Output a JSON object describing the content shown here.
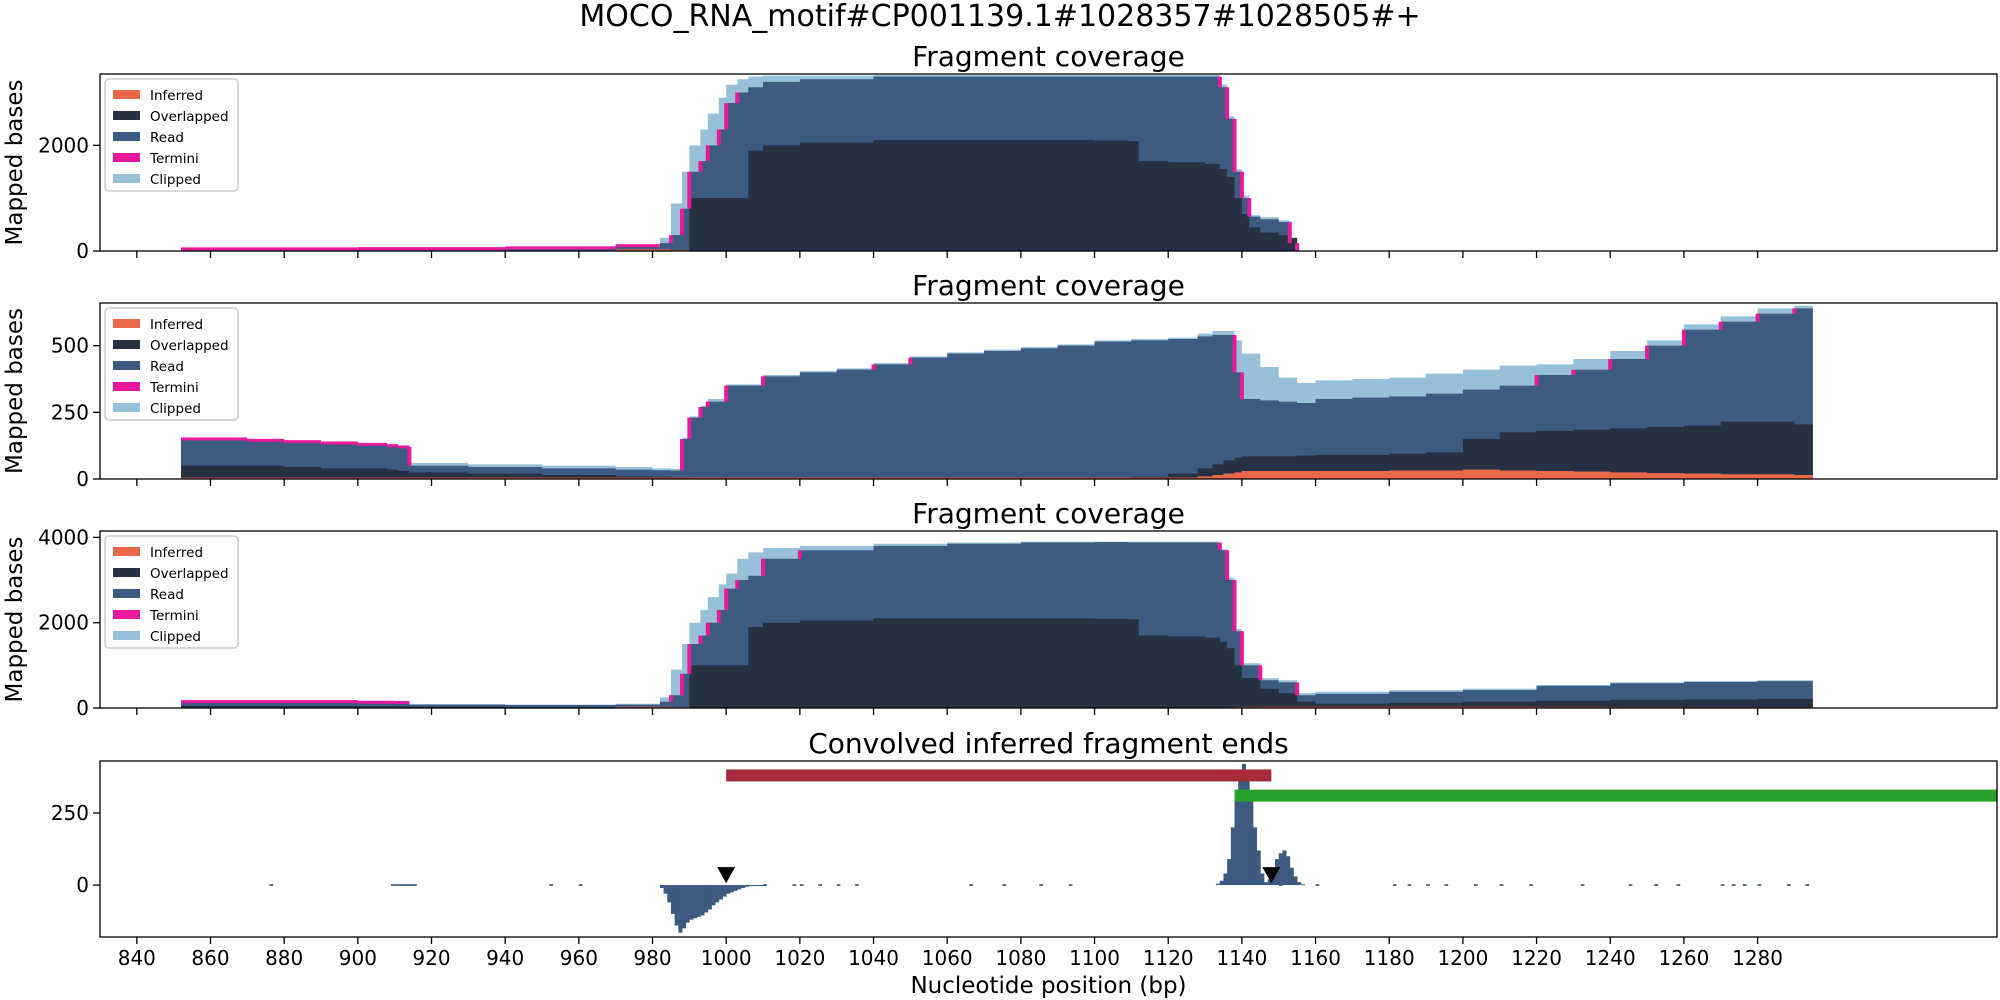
{
  "figure": {
    "suptitle": "MOCO_RNA_motif#CP001139.1#1028357#1028505#+"
  },
  "colors": {
    "Inferred": "#e8694a",
    "Overlapped": "#273142",
    "Read": "#3d5a80",
    "Termini": "#e8199a",
    "Clipped": "#98c1d9",
    "peak_bar": "#3d5a80",
    "red_range": "#a52a3a",
    "green_range": "#2ca02c",
    "marker": "#000000"
  },
  "chart_data": [
    {
      "type": "area",
      "title": "Fragment coverage",
      "ylabel": "Mapped bases",
      "xlabel": "",
      "xlim": [
        830,
        1345
      ],
      "ylim": [
        0,
        3350
      ],
      "yticks": [
        0,
        2000
      ],
      "legend": {
        "placement": "top-left",
        "entries": [
          "Inferred",
          "Overlapped",
          "Read",
          "Termini",
          "Clipped"
        ]
      },
      "x": [
        852,
        900,
        940,
        970,
        982,
        985,
        988,
        990,
        993,
        995,
        998,
        1000,
        1003,
        1006,
        1010,
        1020,
        1040,
        1060,
        1080,
        1100,
        1109,
        1112,
        1120,
        1130,
        1134,
        1136,
        1138,
        1140,
        1142,
        1145,
        1150,
        1153,
        1155
      ],
      "series": [
        {
          "name": "Inferred",
          "values": [
            0,
            0,
            0,
            30,
            30,
            20,
            20,
            10,
            10,
            10,
            5,
            5,
            5,
            5,
            5,
            5,
            5,
            5,
            5,
            5,
            5,
            5,
            5,
            5,
            5,
            5,
            5,
            5,
            5,
            5,
            5,
            5,
            0
          ]
        },
        {
          "name": "Overlapped",
          "values": [
            0,
            0,
            0,
            0,
            0,
            0,
            0,
            1000,
            1000,
            1000,
            1000,
            1000,
            1000,
            1900,
            2000,
            2050,
            2100,
            2100,
            2100,
            2090,
            2080,
            1700,
            1680,
            1650,
            1550,
            1400,
            1000,
            700,
            450,
            350,
            300,
            250,
            0
          ]
        },
        {
          "name": "Read",
          "values": [
            40,
            45,
            60,
            100,
            150,
            300,
            800,
            1500,
            1700,
            2000,
            2300,
            2800,
            3000,
            3100,
            3200,
            3250,
            3300,
            3300,
            3300,
            3300,
            3300,
            3300,
            3300,
            3300,
            3100,
            2500,
            1500,
            1000,
            650,
            600,
            550,
            150,
            0
          ]
        },
        {
          "name": "Clipped",
          "values": [
            40,
            45,
            60,
            100,
            250,
            900,
            1500,
            2000,
            2300,
            2600,
            2900,
            3150,
            3250,
            3300,
            3320,
            3320,
            3330,
            3330,
            3330,
            3330,
            3330,
            3330,
            3330,
            3330,
            3150,
            2550,
            1550,
            1050,
            680,
            640,
            580,
            160,
            0
          ]
        }
      ]
    },
    {
      "type": "area",
      "title": "Fragment coverage",
      "ylabel": "Mapped bases",
      "xlabel": "",
      "xlim": [
        830,
        1345
      ],
      "ylim": [
        0,
        660
      ],
      "yticks": [
        0,
        250,
        500
      ],
      "legend": {
        "placement": "top-left",
        "entries": [
          "Inferred",
          "Overlapped",
          "Read",
          "Termini",
          "Clipped"
        ]
      },
      "x": [
        852,
        870,
        880,
        890,
        900,
        908,
        911,
        914,
        930,
        950,
        970,
        980,
        985,
        988,
        990,
        993,
        995,
        1000,
        1010,
        1020,
        1030,
        1040,
        1050,
        1060,
        1070,
        1080,
        1090,
        1100,
        1110,
        1120,
        1128,
        1132,
        1135,
        1138,
        1140,
        1145,
        1150,
        1155,
        1160,
        1170,
        1180,
        1190,
        1200,
        1210,
        1220,
        1230,
        1240,
        1250,
        1260,
        1270,
        1280,
        1290,
        1295
      ],
      "series": [
        {
          "name": "Inferred",
          "values": [
            5,
            5,
            5,
            5,
            5,
            5,
            5,
            5,
            5,
            5,
            5,
            5,
            5,
            5,
            5,
            5,
            5,
            5,
            5,
            5,
            5,
            5,
            5,
            5,
            5,
            5,
            5,
            5,
            5,
            5,
            10,
            15,
            20,
            25,
            30,
            30,
            30,
            30,
            30,
            30,
            32,
            32,
            35,
            32,
            30,
            28,
            25,
            22,
            20,
            18,
            18,
            15,
            15
          ]
        },
        {
          "name": "Overlapped",
          "values": [
            50,
            50,
            45,
            40,
            40,
            35,
            30,
            25,
            20,
            15,
            10,
            8,
            6,
            6,
            5,
            5,
            5,
            5,
            5,
            5,
            5,
            5,
            5,
            5,
            5,
            5,
            5,
            5,
            8,
            20,
            40,
            55,
            70,
            80,
            85,
            85,
            85,
            88,
            90,
            90,
            95,
            100,
            150,
            175,
            180,
            185,
            190,
            195,
            200,
            215,
            215,
            205,
            180
          ]
        },
        {
          "name": "Read",
          "values": [
            150,
            145,
            140,
            135,
            130,
            125,
            120,
            50,
            45,
            40,
            35,
            33,
            32,
            150,
            230,
            270,
            290,
            350,
            385,
            400,
            410,
            430,
            455,
            470,
            480,
            490,
            500,
            515,
            520,
            525,
            535,
            540,
            540,
            400,
            300,
            295,
            290,
            285,
            300,
            305,
            310,
            320,
            335,
            350,
            390,
            410,
            450,
            500,
            560,
            590,
            620,
            640,
            640
          ]
        },
        {
          "name": "Clipped",
          "values": [
            150,
            145,
            140,
            135,
            130,
            125,
            120,
            60,
            55,
            50,
            45,
            40,
            38,
            155,
            235,
            275,
            300,
            355,
            390,
            405,
            415,
            435,
            460,
            475,
            485,
            495,
            505,
            520,
            525,
            530,
            545,
            555,
            555,
            520,
            470,
            420,
            380,
            360,
            370,
            375,
            380,
            395,
            410,
            425,
            430,
            450,
            480,
            520,
            580,
            610,
            640,
            650,
            650
          ]
        }
      ]
    },
    {
      "type": "area",
      "title": "Fragment coverage",
      "ylabel": "Mapped bases",
      "xlabel": "",
      "xlim": [
        830,
        1345
      ],
      "ylim": [
        0,
        4150
      ],
      "yticks": [
        0,
        2000,
        4000
      ],
      "legend": {
        "placement": "top-left",
        "entries": [
          "Inferred",
          "Overlapped",
          "Read",
          "Termini",
          "Clipped"
        ]
      },
      "x": [
        852,
        900,
        910,
        914,
        940,
        970,
        982,
        985,
        988,
        990,
        993,
        995,
        998,
        1000,
        1003,
        1006,
        1010,
        1020,
        1040,
        1060,
        1080,
        1100,
        1109,
        1112,
        1120,
        1130,
        1134,
        1136,
        1138,
        1140,
        1145,
        1150,
        1155,
        1160,
        1180,
        1200,
        1220,
        1240,
        1260,
        1280,
        1295
      ],
      "series": [
        {
          "name": "Inferred",
          "values": [
            5,
            5,
            5,
            5,
            5,
            30,
            30,
            20,
            20,
            10,
            10,
            10,
            5,
            5,
            5,
            5,
            5,
            5,
            5,
            5,
            5,
            5,
            5,
            5,
            5,
            5,
            10,
            15,
            20,
            25,
            30,
            30,
            30,
            30,
            30,
            30,
            25,
            20,
            18,
            15,
            15
          ]
        },
        {
          "name": "Overlapped",
          "values": [
            50,
            40,
            35,
            25,
            15,
            10,
            5,
            5,
            5,
            1000,
            1000,
            1000,
            1000,
            1000,
            1000,
            1900,
            2000,
            2050,
            2100,
            2100,
            2100,
            2090,
            2080,
            1700,
            1680,
            1650,
            1550,
            1400,
            1000,
            700,
            450,
            350,
            150,
            100,
            120,
            150,
            170,
            190,
            200,
            215,
            180
          ]
        },
        {
          "name": "Read",
          "values": [
            150,
            135,
            130,
            80,
            70,
            80,
            150,
            300,
            800,
            1500,
            1700,
            2000,
            2300,
            2800,
            3000,
            3100,
            3500,
            3700,
            3800,
            3850,
            3880,
            3890,
            3880,
            3880,
            3880,
            3880,
            3700,
            3000,
            1800,
            1000,
            650,
            600,
            300,
            330,
            380,
            420,
            520,
            580,
            610,
            630,
            630
          ]
        },
        {
          "name": "Clipped",
          "values": [
            150,
            135,
            130,
            90,
            80,
            100,
            250,
            900,
            1500,
            2000,
            2300,
            2600,
            2900,
            3150,
            3500,
            3650,
            3750,
            3800,
            3850,
            3880,
            3900,
            3900,
            3900,
            3900,
            3900,
            3900,
            3720,
            3050,
            1850,
            1050,
            700,
            650,
            350,
            380,
            420,
            450,
            540,
            600,
            630,
            650,
            650
          ]
        }
      ]
    },
    {
      "type": "bar",
      "title": "Convolved inferred fragment ends",
      "ylabel": "",
      "xlabel": "Nucleotide position (bp)",
      "xlim": [
        830,
        1345
      ],
      "ylim": [
        -180,
        430
      ],
      "yticks": [
        0,
        250
      ],
      "xticks": [
        840,
        860,
        880,
        900,
        920,
        940,
        960,
        980,
        1000,
        1020,
        1040,
        1060,
        1080,
        1100,
        1120,
        1140,
        1160,
        1180,
        1200,
        1220,
        1240,
        1260,
        1280
      ],
      "x": [
        982,
        983,
        984,
        985,
        986,
        987,
        988,
        989,
        990,
        991,
        992,
        993,
        994,
        995,
        996,
        997,
        998,
        999,
        1000,
        1001,
        1002,
        1003,
        1004,
        1005,
        1006,
        1007,
        1008,
        1009,
        1010,
        1133,
        1134,
        1135,
        1136,
        1137,
        1138,
        1139,
        1140,
        1141,
        1142,
        1143,
        1144,
        1145,
        1146,
        1147,
        1148,
        1149,
        1150,
        1151,
        1152,
        1153,
        1154,
        1155,
        1156
      ],
      "values": [
        -10,
        -30,
        -60,
        -100,
        -140,
        -165,
        -150,
        -130,
        -120,
        -115,
        -110,
        -105,
        -95,
        -85,
        -70,
        -60,
        -50,
        -40,
        -30,
        -25,
        -20,
        -15,
        -10,
        -6,
        -4,
        -3,
        -2,
        -2,
        -1,
        5,
        15,
        40,
        90,
        200,
        320,
        380,
        420,
        390,
        300,
        200,
        120,
        40,
        10,
        20,
        60,
        90,
        110,
        120,
        100,
        60,
        30,
        10,
        3
      ],
      "ranges": [
        {
          "start": 1000,
          "end": 1148,
          "value": 380,
          "color": "#a52a3a"
        },
        {
          "start": 1138,
          "end": 1345,
          "value": 310,
          "color": "#2ca02c"
        }
      ],
      "markers": [
        {
          "x": 1000,
          "value": 0
        },
        {
          "x": 1148,
          "value": 0
        }
      ],
      "noise": [
        876,
        909,
        910,
        911,
        912,
        913,
        914,
        915,
        952,
        960,
        1010,
        1018,
        1020,
        1025,
        1030,
        1035,
        1066,
        1075,
        1085,
        1093,
        1150,
        1160,
        1181,
        1185,
        1190,
        1195,
        1203,
        1210,
        1218,
        1232,
        1245,
        1252,
        1258,
        1270,
        1273,
        1276,
        1280,
        1288,
        1293
      ]
    }
  ]
}
